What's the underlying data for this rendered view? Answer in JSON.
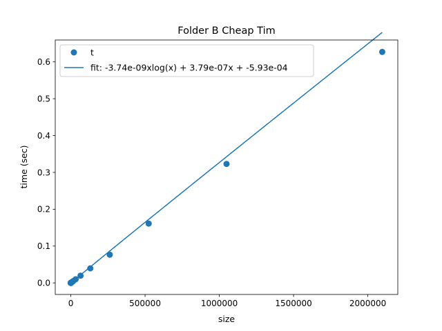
{
  "chart_data": {
    "type": "scatter",
    "title": "Folder B Cheap Tim",
    "xlabel": "size",
    "ylabel": "time (sec)",
    "xlim": [
      -104857.6,
      2202009.6
    ],
    "ylim": [
      -0.0314,
      0.6594
    ],
    "x_ticks": [
      0,
      500000,
      1000000,
      1500000,
      2000000
    ],
    "y_ticks": [
      0.0,
      0.1,
      0.2,
      0.3,
      0.4,
      0.5,
      0.6
    ],
    "x_tick_labels": [
      "0",
      "500000",
      "1000000",
      "1500000",
      "2000000"
    ],
    "y_tick_labels": [
      "0.0",
      "0.1",
      "0.2",
      "0.3",
      "0.4",
      "0.5",
      "0.6"
    ],
    "legend_position": "upper-left",
    "color": "#1f77b4",
    "series": [
      {
        "name": "t",
        "kind": "points",
        "x": [
          1,
          2,
          4,
          8,
          16,
          32,
          64,
          128,
          256,
          512,
          1024,
          2048,
          4096,
          8192,
          16384,
          32768,
          65536,
          131072,
          262144,
          524288,
          1048576,
          2097152
        ],
        "y": [
          0.0,
          0.0,
          0.0,
          0.0,
          0.0,
          0.0,
          0.0,
          0.0,
          0.0001,
          0.0002,
          0.0003,
          0.0006,
          0.0012,
          0.0025,
          0.005,
          0.0098,
          0.0195,
          0.0395,
          0.0765,
          0.161,
          0.323,
          0.627
        ]
      },
      {
        "name": "fit: -3.74e-09xlog(x) + 3.79e-07x + -5.93e-04",
        "kind": "line",
        "coefficients": {
          "a": -3.74e-09,
          "b": 3.79e-07,
          "c": -0.000593
        }
      }
    ]
  }
}
